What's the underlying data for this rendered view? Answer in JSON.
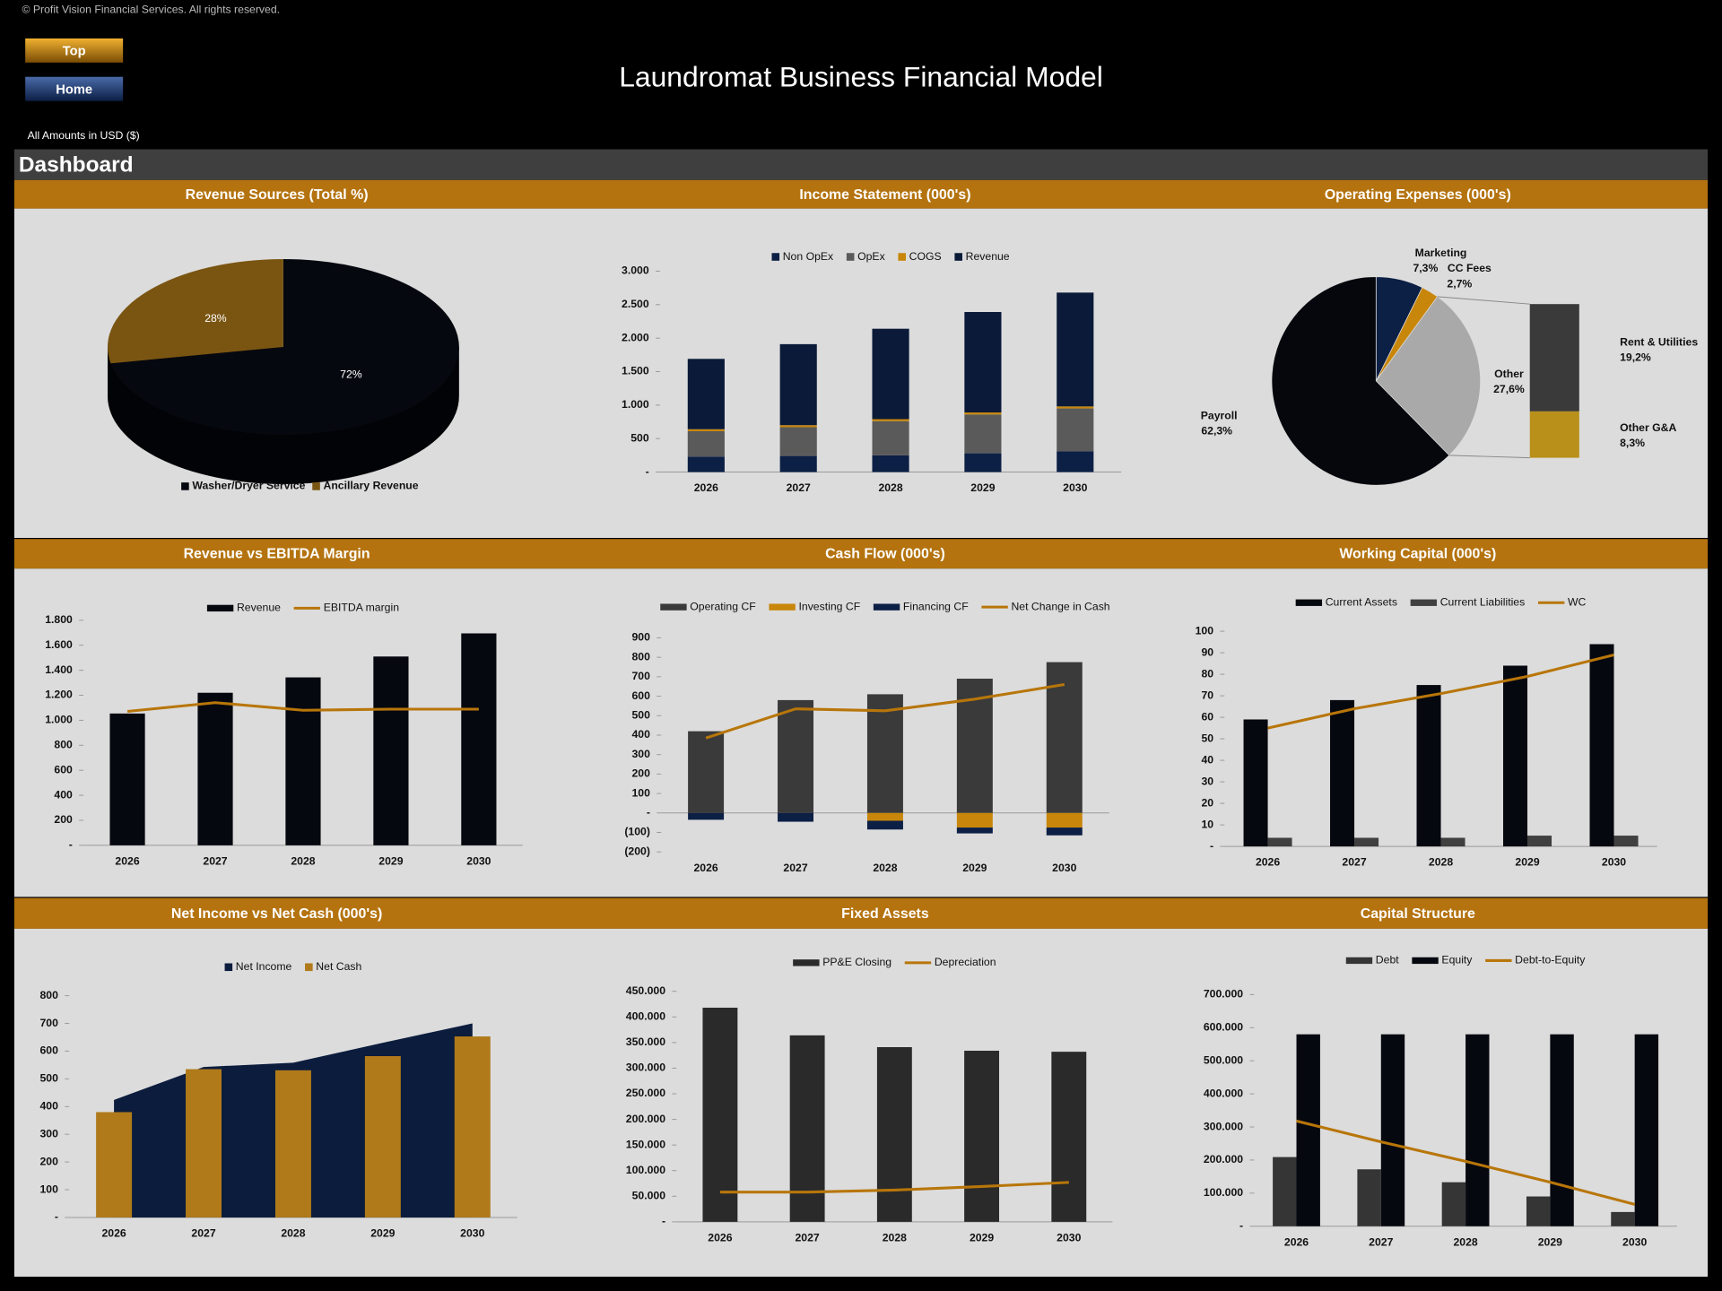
{
  "header": {
    "copyright": "© Profit Vision Financial Services. All rights reserved.",
    "buttons": [
      "Top",
      "Home"
    ],
    "title": "Laundromat Business Financial Model",
    "currency_note": "All Amounts in  USD ($)",
    "section": "Dashboard"
  },
  "chart_data": [
    {
      "type": "pie",
      "title": "Revenue Sources (Total %)",
      "3d": true,
      "categories": [
        "Washer/Dryer Service",
        "Ancillary Revenue"
      ],
      "values": [
        72,
        28
      ],
      "value_labels": [
        "72%",
        "28%"
      ],
      "colors": [
        "#06080f",
        "#7a5512"
      ]
    },
    {
      "type": "bar",
      "title": "Income Statement (000's)",
      "stacked": true,
      "categories": [
        "2026",
        "2027",
        "2028",
        "2029",
        "2030"
      ],
      "series": [
        {
          "name": "Non OpEx",
          "type": "bar",
          "color": "#0c1f45",
          "values": [
            230,
            240,
            250,
            280,
            310
          ]
        },
        {
          "name": "OpEx",
          "type": "bar",
          "color": "#5a5a5a",
          "values": [
            380,
            430,
            510,
            580,
            640
          ]
        },
        {
          "name": "COGS",
          "type": "bar",
          "color": "#c8860a",
          "values": [
            30,
            30,
            30,
            30,
            30
          ]
        },
        {
          "name": "Revenue",
          "type": "bar",
          "color": "#0a1a38",
          "values": [
            1050,
            1210,
            1350,
            1500,
            1700
          ]
        }
      ],
      "ylim": [
        0,
        3000
      ],
      "yticks": [
        {
          "value": 0,
          "label": "-"
        },
        500,
        {
          "value": 1000,
          "label": "1.000"
        },
        {
          "value": 1500,
          "label": "1.500"
        },
        {
          "value": 2000,
          "label": "2.000"
        },
        {
          "value": 2500,
          "label": "2.500"
        },
        {
          "value": 3000,
          "label": "3.000"
        }
      ]
    },
    {
      "type": "pie",
      "title": "Operating Expenses (000's)",
      "categories": [
        "Marketing",
        "CC Fees",
        "Other",
        "Payroll"
      ],
      "values": [
        7.3,
        2.7,
        27.6,
        62.3
      ],
      "value_labels": [
        "7,3%",
        "2,7%",
        "27,6%",
        "62,3%"
      ],
      "colors": [
        "#0c1f45",
        "#c8860a",
        "#a9a9a9",
        "#05070d"
      ],
      "breakdown": {
        "categories": [
          "Rent & Utilities",
          "Other G&A"
        ],
        "values": [
          19.2,
          8.3
        ],
        "value_labels": [
          "19,2%",
          "8,3%"
        ],
        "colors": [
          "#3a3a3a",
          "#b8901a"
        ]
      }
    },
    {
      "type": "bar",
      "title": "Revenue vs EBITDA Margin",
      "categories": [
        "2026",
        "2027",
        "2028",
        "2029",
        "2030"
      ],
      "series": [
        {
          "name": "Revenue",
          "type": "bar",
          "color": "#06080f",
          "values": [
            1054,
            1220,
            1343,
            1510,
            1695
          ]
        },
        {
          "name": "EBITDA margin",
          "type": "line",
          "color": "#b8760a",
          "values": [
            1071,
            1141,
            1080,
            1089,
            1089
          ]
        }
      ],
      "ylim": [
        0,
        1800
      ],
      "yticks": [
        {
          "value": 0,
          "label": "-"
        },
        200,
        400,
        600,
        800,
        {
          "value": 1000,
          "label": "1.000"
        },
        {
          "value": 1200,
          "label": "1.200"
        },
        {
          "value": 1400,
          "label": "1.400"
        },
        {
          "value": 1600,
          "label": "1.600"
        },
        {
          "value": 1800,
          "label": "1.800"
        }
      ]
    },
    {
      "type": "bar",
      "title": "Cash Flow (000's)",
      "stacked": true,
      "categories": [
        "2026",
        "2027",
        "2028",
        "2029",
        "2030"
      ],
      "series": [
        {
          "name": "Operating CF",
          "type": "bar",
          "color": "#3a3a3a",
          "values": [
            420,
            580,
            610,
            690,
            775
          ]
        },
        {
          "name": "Investing CF",
          "type": "bar",
          "color": "#c8860a",
          "values": [
            0,
            0,
            -40,
            -75,
            -75
          ]
        },
        {
          "name": "Financing CF",
          "type": "bar",
          "color": "#0c1f45",
          "values": [
            -35,
            -45,
            -45,
            -30,
            -40
          ]
        },
        {
          "name": "Net Change in Cash",
          "type": "line",
          "color": "#b8760a",
          "values": [
            385,
            535,
            525,
            585,
            660
          ]
        }
      ],
      "ylim": [
        -200,
        900
      ],
      "yticks": [
        {
          "value": -200,
          "label": "(200)"
        },
        {
          "value": -100,
          "label": "(100)"
        },
        {
          "value": 0,
          "label": "-"
        },
        100,
        200,
        300,
        400,
        500,
        600,
        700,
        800,
        900
      ]
    },
    {
      "type": "bar",
      "title": "Working Capital (000's)",
      "categories": [
        "2026",
        "2027",
        "2028",
        "2029",
        "2030"
      ],
      "series": [
        {
          "name": "Current Assets",
          "type": "bar",
          "color": "#06080f",
          "values": [
            59,
            68,
            75,
            84,
            94
          ]
        },
        {
          "name": "Current Liabilities",
          "type": "bar",
          "color": "#404040",
          "values": [
            4,
            4,
            4,
            5,
            5
          ]
        },
        {
          "name": "WC",
          "type": "line",
          "color": "#b8760a",
          "values": [
            55,
            64,
            71,
            79,
            89
          ]
        }
      ],
      "ylim": [
        0,
        100
      ],
      "yticks": [
        {
          "value": 0,
          "label": "-"
        },
        10,
        20,
        30,
        40,
        50,
        60,
        70,
        80,
        90,
        100
      ]
    },
    {
      "type": "bar",
      "title": "Net Income vs Net Cash (000's)",
      "categories": [
        "2026",
        "2027",
        "2028",
        "2029",
        "2030"
      ],
      "series": [
        {
          "name": "Net Income",
          "type": "area",
          "color": "#0b1c3d",
          "values": [
            424,
            543,
            558,
            630,
            700
          ]
        },
        {
          "name": "Net Cash",
          "type": "bar",
          "color": "#b07a1a",
          "values": [
            380,
            535,
            531,
            582,
            653
          ]
        }
      ],
      "ylim": [
        0,
        800
      ],
      "yticks": [
        {
          "value": 0,
          "label": "-"
        },
        100,
        200,
        300,
        400,
        500,
        600,
        700,
        800
      ]
    },
    {
      "type": "bar",
      "title": "Fixed Assets",
      "categories": [
        "2026",
        "2027",
        "2028",
        "2029",
        "2030"
      ],
      "series": [
        {
          "name": "PP&E Closing",
          "type": "bar",
          "color": "#2a2a2a",
          "values": [
            418000,
            364000,
            341000,
            334000,
            332000
          ]
        },
        {
          "name": "Depreciation",
          "type": "line",
          "color": "#b8760a",
          "values": [
            58000,
            58000,
            62000,
            69000,
            77000
          ]
        }
      ],
      "ylim": [
        0,
        450000
      ],
      "yticks": [
        {
          "value": 0,
          "label": "-"
        },
        {
          "value": 50000,
          "label": "50.000"
        },
        {
          "value": 100000,
          "label": "100.000"
        },
        {
          "value": 150000,
          "label": "150.000"
        },
        {
          "value": 200000,
          "label": "200.000"
        },
        {
          "value": 250000,
          "label": "250.000"
        },
        {
          "value": 300000,
          "label": "300.000"
        },
        {
          "value": 350000,
          "label": "350.000"
        },
        {
          "value": 400000,
          "label": "400.000"
        },
        {
          "value": 450000,
          "label": "450.000"
        }
      ]
    },
    {
      "type": "bar",
      "title": "Capital Structure",
      "categories": [
        "2026",
        "2027",
        "2028",
        "2029",
        "2030"
      ],
      "series": [
        {
          "name": "Debt",
          "type": "bar",
          "color": "#353535",
          "values": [
            209000,
            172000,
            133000,
            90000,
            43000
          ]
        },
        {
          "name": "Equity",
          "type": "bar",
          "color": "#06080f",
          "values": [
            580000,
            580000,
            580000,
            580000,
            580000
          ]
        },
        {
          "name": "Debt-to-Equity",
          "type": "line",
          "color": "#b8760a",
          "values": [
            318000,
            255000,
            196000,
            133000,
            66000
          ]
        }
      ],
      "ylim": [
        0,
        700000
      ],
      "yticks": [
        {
          "value": 0,
          "label": "-"
        },
        {
          "value": 100000,
          "label": "100.000"
        },
        {
          "value": 200000,
          "label": "200.000"
        },
        {
          "value": 300000,
          "label": "300.000"
        },
        {
          "value": 400000,
          "label": "400.000"
        },
        {
          "value": 500000,
          "label": "500.000"
        },
        {
          "value": 600000,
          "label": "600.000"
        },
        {
          "value": 700000,
          "label": "700.000"
        }
      ]
    }
  ]
}
